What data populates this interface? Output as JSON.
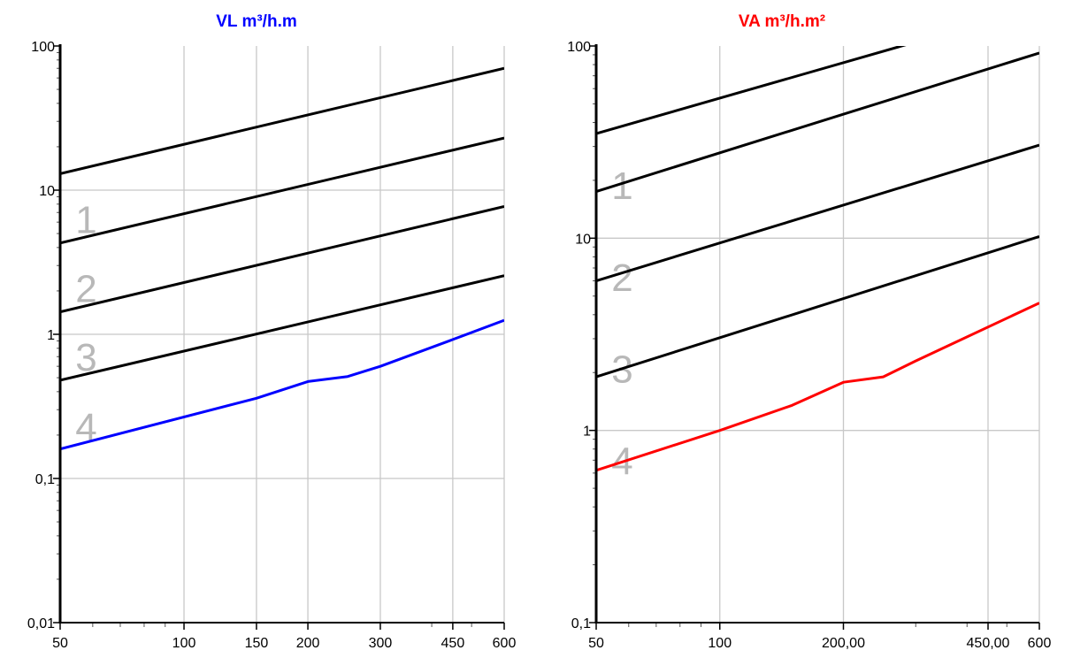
{
  "chart_data": [
    {
      "type": "line",
      "title": "VL m³/h.m",
      "title_color": "#0000ff",
      "x_scale": "log",
      "y_scale": "log",
      "xlim": [
        50,
        600
      ],
      "ylim": [
        0.01,
        100
      ],
      "x_ticks": [
        {
          "value": 50,
          "label": "50"
        },
        {
          "value": 100,
          "label": "100"
        },
        {
          "value": 150,
          "label": "150"
        },
        {
          "value": 200,
          "label": "200"
        },
        {
          "value": 300,
          "label": "300"
        },
        {
          "value": 450,
          "label": "450"
        },
        {
          "value": 600,
          "label": "600"
        }
      ],
      "y_ticks": [
        {
          "value": 0.01,
          "label": "0,01"
        },
        {
          "value": 0.1,
          "label": "0,1"
        },
        {
          "value": 1,
          "label": "1"
        },
        {
          "value": 10,
          "label": "10"
        },
        {
          "value": 100,
          "label": "100"
        }
      ],
      "grid": true,
      "reference_lines": [
        {
          "x": [
            50,
            600
          ],
          "y": [
            13,
            70
          ],
          "color": "#000000"
        },
        {
          "x": [
            50,
            600
          ],
          "y": [
            4.3,
            23
          ],
          "color": "#000000"
        },
        {
          "x": [
            50,
            600
          ],
          "y": [
            1.43,
            7.7
          ],
          "color": "#000000"
        },
        {
          "x": [
            50,
            600
          ],
          "y": [
            0.48,
            2.55
          ],
          "color": "#000000"
        }
      ],
      "series": [
        {
          "color": "#0000ff",
          "x": [
            50,
            150,
            200,
            250,
            300,
            450,
            600
          ],
          "y": [
            0.16,
            0.36,
            0.47,
            0.51,
            0.6,
            0.92,
            1.25
          ]
        }
      ],
      "zone_labels": [
        {
          "text": "1",
          "x": 55,
          "y": 6.3
        },
        {
          "text": "2",
          "x": 55,
          "y": 2.1
        },
        {
          "text": "3",
          "x": 55,
          "y": 0.7
        },
        {
          "text": "4",
          "x": 55,
          "y": 0.23
        }
      ]
    },
    {
      "type": "line",
      "title": "VA m³/h.m²",
      "title_color": "#ff0000",
      "x_scale": "log",
      "y_scale": "log",
      "xlim": [
        50,
        600
      ],
      "ylim": [
        0.1,
        100
      ],
      "x_ticks": [
        {
          "value": 50,
          "label": "50"
        },
        {
          "value": 100,
          "label": "100"
        },
        {
          "value": 200,
          "label": "200,00"
        },
        {
          "value": 450,
          "label": "450,00"
        },
        {
          "value": 600,
          "label": "600"
        }
      ],
      "y_ticks": [
        {
          "value": 0.1,
          "label": "0,1"
        },
        {
          "value": 1,
          "label": "1"
        },
        {
          "value": 10,
          "label": "10"
        },
        {
          "value": 100,
          "label": "100"
        }
      ],
      "grid": true,
      "reference_lines": [
        {
          "x": [
            50,
            300
          ],
          "y": [
            35,
            105
          ],
          "color": "#000000"
        },
        {
          "x": [
            50,
            600
          ],
          "y": [
            17.5,
            92
          ],
          "color": "#000000"
        },
        {
          "x": [
            50,
            600
          ],
          "y": [
            6,
            30.5
          ],
          "color": "#000000"
        },
        {
          "x": [
            50,
            600
          ],
          "y": [
            1.9,
            10.2
          ],
          "color": "#000000"
        }
      ],
      "series": [
        {
          "color": "#ff0000",
          "x": [
            50,
            100,
            150,
            200,
            250,
            300,
            600
          ],
          "y": [
            0.62,
            1.0,
            1.35,
            1.78,
            1.9,
            2.3,
            4.6
          ]
        }
      ],
      "zone_labels": [
        {
          "text": "1",
          "x": 55,
          "y": 19
        },
        {
          "text": "2",
          "x": 55,
          "y": 6.3
        },
        {
          "text": "3",
          "x": 55,
          "y": 2.1
        },
        {
          "text": "4",
          "x": 55,
          "y": 0.7
        }
      ]
    }
  ]
}
